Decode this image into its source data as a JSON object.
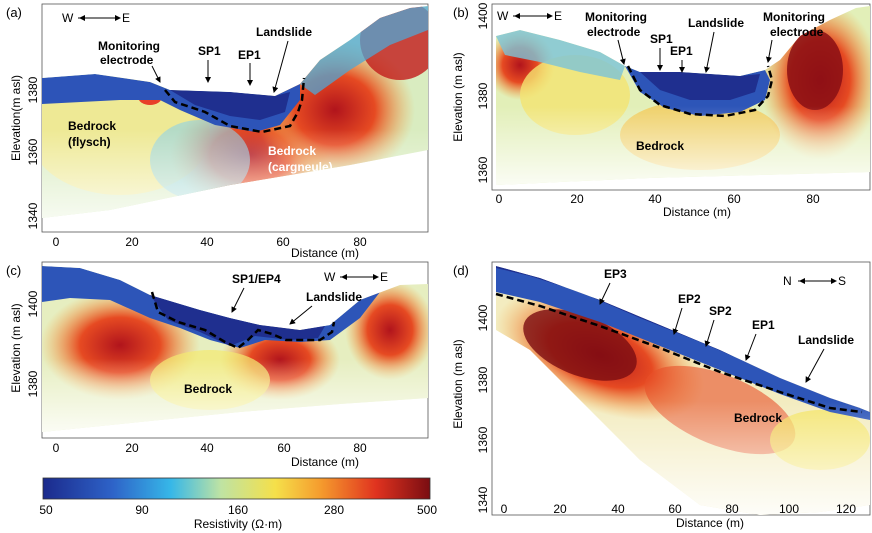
{
  "panels": [
    {
      "id": "a",
      "label": "(a)",
      "ylabel": "Elevation(m asl)",
      "xlabel": "Distance (m)",
      "xticks": [
        "0",
        "20",
        "40",
        "60",
        "80"
      ],
      "yticks": [
        "1380",
        "1360",
        "1340"
      ],
      "direction": {
        "left": "W",
        "right": "E"
      },
      "annotations": [
        "Monitoring",
        "electrode",
        "SP1",
        "EP1",
        "Landslide",
        "Bedrock",
        "(flysch)",
        "Bedrock",
        "(cargneule)"
      ]
    },
    {
      "id": "b",
      "label": "(b)",
      "ylabel": "Elevation (m asl)",
      "xlabel": "Distance (m)",
      "xticks": [
        "0",
        "20",
        "40",
        "60",
        "80"
      ],
      "yticks": [
        "1400",
        "1380",
        "1360"
      ],
      "direction": {
        "left": "W",
        "right": "E"
      },
      "annotations": [
        "Monitoring",
        "electrode",
        "SP1",
        "EP1",
        "Landslide",
        "Monitoring",
        "electrode",
        "Bedrock"
      ]
    },
    {
      "id": "c",
      "label": "(c)",
      "ylabel": "Elevation (m asl)",
      "xlabel": "Distance (m)",
      "xticks": [
        "0",
        "20",
        "40",
        "60",
        "80"
      ],
      "yticks": [
        "1400",
        "1380"
      ],
      "direction": {
        "left": "W",
        "right": "E"
      },
      "annotations": [
        "SP1/EP4",
        "Landslide",
        "Bedrock"
      ]
    },
    {
      "id": "d",
      "label": "(d)",
      "ylabel": "Elevation (m asl)",
      "xlabel": "Distance (m)",
      "xticks": [
        "0",
        "20",
        "40",
        "60",
        "80",
        "100",
        "120"
      ],
      "yticks": [
        "1400",
        "1380",
        "1360",
        "1340"
      ],
      "direction": {
        "left": "N",
        "right": "S"
      },
      "annotations": [
        "EP3",
        "EP2",
        "SP2",
        "EP1",
        "Landslide",
        "Bedrock"
      ]
    }
  ],
  "colorbar": {
    "ticks": [
      "50",
      "90",
      "160",
      "280",
      "500"
    ],
    "label": "Resistivity (Ω·m)",
    "colors": [
      "#1b2a8c",
      "#2e63c8",
      "#36b7e8",
      "#bfe3a3",
      "#f5e04a",
      "#f59a2d",
      "#e0331f",
      "#7a0d12"
    ]
  }
}
